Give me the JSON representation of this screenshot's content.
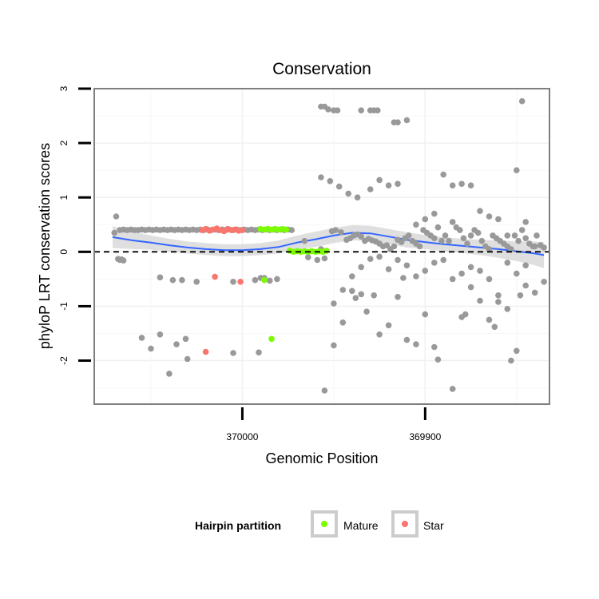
{
  "chart_data": {
    "type": "scatter",
    "title": "Conservation",
    "xlabel": "Genomic Position",
    "ylabel": "phyloP LRT conservation scores",
    "x_axis_reversed": true,
    "xlim": [
      370081,
      369832
    ],
    "ylim": [
      -2.8,
      3.0
    ],
    "x_ticks": [
      370000,
      369900
    ],
    "y_ticks": [
      -2,
      -1,
      0,
      1,
      2,
      3
    ],
    "grid": true,
    "reference_line": {
      "y": 0,
      "style": "dashed"
    },
    "legend": {
      "title": "Hairpin partition",
      "position": "bottom",
      "entries": [
        {
          "name": "Mature",
          "color": "#7cfc00"
        },
        {
          "name": "Star",
          "color": "#f8766d"
        }
      ]
    },
    "colors": {
      "other": "#999999",
      "smooth": "#3366ff",
      "band": "#d9d9d9"
    },
    "series": [
      {
        "name": "",
        "color": "#999999",
        "x": [
          370070,
          370069,
          370067,
          370065,
          370063,
          370061,
          370059,
          370057,
          370055,
          370053,
          370051,
          370049,
          370047,
          370045,
          370043,
          370041,
          370039,
          370037,
          370035,
          370033,
          370031,
          370029,
          370027,
          370025,
          370023,
          370021,
          370019,
          370017,
          370015,
          370013,
          370011,
          370009,
          370007,
          370005,
          370003,
          370001,
          369999,
          369997,
          369995,
          369993,
          369991,
          369989,
          369987,
          369985,
          369983,
          369981,
          369979,
          369977,
          369975,
          369973,
          370068,
          370067,
          370066,
          370065,
          370045,
          370038,
          370033,
          370025,
          370005,
          369993,
          369990,
          369988,
          369985,
          370055,
          370050,
          370045,
          370040,
          370031,
          370005,
          369991,
          370036,
          370030,
          369981,
          369966,
          369964,
          369959,
          369957,
          369955,
          369951,
          369949,
          369946,
          369943,
          369941,
          369939,
          369937,
          369935,
          369933,
          369931,
          369929,
          369927,
          369925,
          369923,
          369921,
          369919,
          369917,
          369915,
          369913,
          369911,
          369909,
          369907,
          369905,
          369903,
          369901,
          369899,
          369897,
          369895,
          369893,
          369891,
          369889,
          369887,
          369885,
          369883,
          369881,
          369879,
          369877,
          369875,
          369873,
          369871,
          369869,
          369867,
          369865,
          369863,
          369861,
          369859,
          369857,
          369855,
          369853,
          369851,
          369849,
          369847,
          369845,
          369843,
          369841,
          369839,
          369837,
          369835,
          369957,
          369952,
          369947,
          369942,
          369937,
          369930,
          369925,
          369920,
          369915,
          369910,
          369905,
          369900,
          369895,
          369890,
          369885,
          369880,
          369875,
          369870,
          369865,
          369860,
          369855,
          369850,
          369845,
          369840,
          369950,
          369945,
          369940,
          369935,
          369930,
          369925,
          369920,
          369915,
          369910,
          369905,
          369900,
          369895,
          369890,
          369885,
          369880,
          369875,
          369870,
          369865,
          369860,
          369855,
          369850,
          369845,
          369840,
          369835,
          369955,
          369950,
          369945,
          369940,
          369938,
          369935,
          369932,
          369928,
          369925,
          369920,
          369915,
          369912,
          369910,
          369905,
          369900,
          369895,
          369893,
          369885,
          369880,
          369878,
          369875,
          369870,
          369865,
          369862,
          369860,
          369855,
          369853,
          369850,
          369848,
          369845
        ],
        "y": [
          0.35,
          0.65,
          0.4,
          0.41,
          0.4,
          0.41,
          0.4,
          0.4,
          0.41,
          0.4,
          0.41,
          0.4,
          0.41,
          0.4,
          0.41,
          0.4,
          0.41,
          0.4,
          0.41,
          0.4,
          0.41,
          0.4,
          0.41,
          0.4,
          0.41,
          0.4,
          0.41,
          0.4,
          0.41,
          0.4,
          0.41,
          0.4,
          0.41,
          0.4,
          0.41,
          0.4,
          0.41,
          0.4,
          0.41,
          0.4,
          0.41,
          0.4,
          0.41,
          0.4,
          0.41,
          0.4,
          0.41,
          0.4,
          0.41,
          0.4,
          -0.13,
          -0.15,
          -0.14,
          -0.16,
          -0.47,
          -0.52,
          -0.52,
          -0.55,
          -0.55,
          -0.52,
          -0.48,
          -0.48,
          -0.53,
          -1.58,
          -1.78,
          -1.52,
          -2.24,
          -1.6,
          -1.86,
          -1.85,
          -1.7,
          -1.97,
          -0.5,
          0.2,
          -0.1,
          -0.15,
          0.05,
          -0.12,
          0.38,
          0.4,
          0.36,
          0.22,
          0.25,
          0.3,
          0.32,
          0.28,
          0.2,
          0.24,
          0.21,
          0.19,
          0.15,
          0.1,
          0.12,
          0.05,
          0.1,
          0.22,
          0.18,
          0.25,
          0.3,
          0.2,
          0.15,
          0.1,
          0.4,
          0.35,
          0.3,
          0.25,
          0.45,
          0.2,
          0.3,
          0.2,
          0.55,
          0.45,
          0.4,
          0.25,
          0.15,
          0.3,
          0.4,
          0.35,
          0.2,
          0.1,
          0.05,
          0.3,
          0.25,
          0.2,
          0.15,
          0.1,
          0.05,
          0.3,
          0.2,
          0.4,
          0.25,
          0.15,
          0.1,
          0.3,
          0.12,
          0.08,
          1.37,
          1.3,
          1.2,
          1.07,
          1.0,
          1.15,
          1.32,
          1.22,
          1.25,
          2.42,
          0.5,
          0.6,
          0.7,
          1.42,
          1.22,
          1.25,
          1.22,
          0.75,
          0.65,
          0.6,
          0.3,
          1.5,
          0.55,
          0.1,
          -0.95,
          -0.7,
          -0.45,
          -0.28,
          -0.13,
          -0.09,
          -0.32,
          -0.15,
          -0.25,
          -0.45,
          -0.35,
          -0.2,
          -0.15,
          -0.5,
          -0.4,
          -0.28,
          -0.35,
          -0.5,
          -0.8,
          -0.2,
          -0.4,
          -0.25,
          -0.75,
          -0.55,
          -2.55,
          -1.72,
          -1.3,
          -0.72,
          -0.85,
          -0.78,
          -1.1,
          -0.8,
          -1.52,
          -1.35,
          -0.83,
          -0.48,
          -1.62,
          -1.7,
          -1.15,
          -1.75,
          -1.98,
          -2.52,
          -1.2,
          -1.15,
          -0.65,
          -0.9,
          -1.25,
          -1.38,
          -0.92,
          -1.05,
          -2.0,
          -1.82,
          -0.8,
          -0.62
        ]
      },
      {
        "name": "",
        "color": "#999999",
        "x": [
          369957,
          369955,
          369953,
          369950,
          369948,
          369935,
          369930,
          369928,
          369926,
          369917,
          369915,
          369847
        ],
        "y": [
          2.67,
          2.67,
          2.62,
          2.6,
          2.6,
          2.6,
          2.6,
          2.6,
          2.6,
          2.38,
          2.38,
          2.77
        ]
      },
      {
        "name": "Mature",
        "color": "#7cfc00",
        "x": [
          369990,
          369988,
          369986,
          369984,
          369982,
          369980,
          369978,
          369976,
          369974,
          369972,
          369970,
          369968,
          369966,
          369964,
          369962,
          369960,
          369958,
          369956,
          369954,
          369988,
          369984
        ],
        "y": [
          0.42,
          0.41,
          0.42,
          0.41,
          0.42,
          0.41,
          0.42,
          0.41,
          0.02,
          0.0,
          0.01,
          0.0,
          0.01,
          0.0,
          0.01,
          0.0,
          0.01,
          0.0,
          0.02,
          -0.52,
          -1.6
        ]
      },
      {
        "name": "Star",
        "color": "#f8766d",
        "x": [
          370022,
          370020,
          370018,
          370016,
          370014,
          370012,
          370010,
          370008,
          370006,
          370004,
          370002,
          370000,
          370015,
          370001,
          370020
        ],
        "y": [
          0.4,
          0.42,
          0.39,
          0.41,
          0.43,
          0.4,
          0.38,
          0.42,
          0.4,
          0.41,
          0.39,
          0.4,
          -0.46,
          -0.55,
          -1.84
        ]
      }
    ],
    "smooth": {
      "x": [
        370071,
        370060,
        370050,
        370040,
        370030,
        370020,
        370010,
        370000,
        369990,
        369980,
        369970,
        369960,
        369950,
        369940,
        369930,
        369920,
        369910,
        369900,
        369890,
        369880,
        369870,
        369860,
        369850,
        369840,
        369835
      ],
      "y": [
        0.27,
        0.21,
        0.17,
        0.12,
        0.08,
        0.05,
        0.03,
        0.03,
        0.05,
        0.09,
        0.17,
        0.23,
        0.3,
        0.35,
        0.34,
        0.28,
        0.22,
        0.18,
        0.14,
        0.11,
        0.08,
        0.05,
        0.01,
        -0.03,
        -0.06
      ],
      "band_half_width": [
        0.2,
        0.16,
        0.13,
        0.12,
        0.11,
        0.11,
        0.11,
        0.11,
        0.11,
        0.12,
        0.13,
        0.14,
        0.14,
        0.14,
        0.14,
        0.14,
        0.14,
        0.13,
        0.13,
        0.13,
        0.14,
        0.16,
        0.18,
        0.22,
        0.24
      ]
    }
  }
}
